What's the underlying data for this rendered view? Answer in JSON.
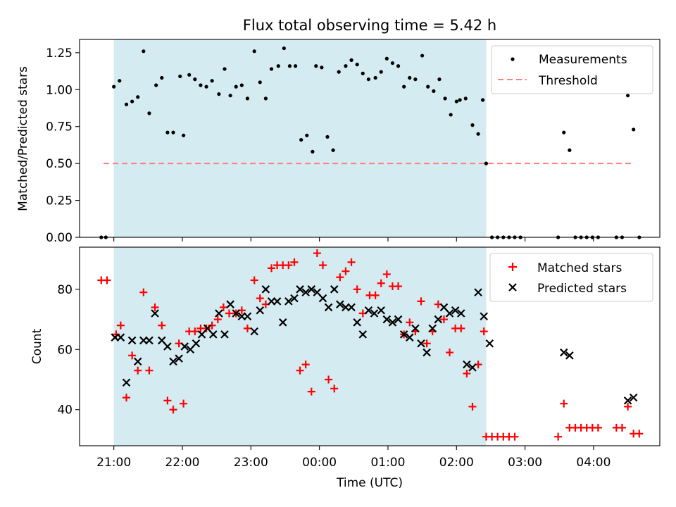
{
  "colors": {
    "span": "#d3ebf1",
    "threshold": "#ff7f7f",
    "matched": "#ff0000",
    "predicted": "#000000",
    "measurement": "#000000"
  },
  "chart_data": [
    {
      "type": "scatter",
      "title": "Flux total observing time = 5.42 h",
      "xlabel": "",
      "ylabel": "Matched/Predicted stars",
      "xlim": [
        "20:30",
        "04:58"
      ],
      "ylim": [
        0,
        1.34
      ],
      "yticks": [
        "0.00",
        "0.25",
        "0.50",
        "0.75",
        "1.00",
        "1.25"
      ],
      "observing_span": [
        "21:00",
        "02:26"
      ],
      "threshold": {
        "value": 0.5,
        "x_start": "20:51",
        "x_end": "04:36"
      },
      "legend": {
        "position": "top-right",
        "items": [
          "Measurements",
          "Threshold"
        ]
      },
      "series": [
        {
          "name": "Measurements",
          "points": [
            [
              "20:49",
              0.0
            ],
            [
              "20:53",
              0.0
            ],
            [
              "21:00",
              1.02
            ],
            [
              "21:05",
              1.06
            ],
            [
              "21:11",
              0.9
            ],
            [
              "21:16",
              0.92
            ],
            [
              "21:21",
              0.95
            ],
            [
              "21:26",
              1.26
            ],
            [
              "21:31",
              0.84
            ],
            [
              "21:37",
              1.03
            ],
            [
              "21:42",
              1.08
            ],
            [
              "21:47",
              0.71
            ],
            [
              "21:52",
              0.71
            ],
            [
              "21:58",
              1.09
            ],
            [
              "22:01",
              0.69
            ],
            [
              "22:06",
              1.1
            ],
            [
              "22:11",
              1.07
            ],
            [
              "22:16",
              1.03
            ],
            [
              "22:21",
              1.02
            ],
            [
              "22:26",
              1.06
            ],
            [
              "22:32",
              0.97
            ],
            [
              "22:37",
              1.14
            ],
            [
              "22:42",
              0.96
            ],
            [
              "22:47",
              1.02
            ],
            [
              "22:52",
              1.03
            ],
            [
              "22:57",
              0.94
            ],
            [
              "23:03",
              1.26
            ],
            [
              "23:08",
              1.05
            ],
            [
              "23:13",
              0.94
            ],
            [
              "23:18",
              1.14
            ],
            [
              "23:24",
              1.16
            ],
            [
              "23:29",
              1.28
            ],
            [
              "23:34",
              1.16
            ],
            [
              "23:39",
              1.16
            ],
            [
              "23:44",
              0.66
            ],
            [
              "23:49",
              0.69
            ],
            [
              "23:54",
              0.58
            ],
            [
              "23:57",
              1.16
            ],
            [
              "00:02",
              1.15
            ],
            [
              "00:07",
              0.68
            ],
            [
              "00:12",
              0.59
            ],
            [
              "00:17",
              1.12
            ],
            [
              "00:23",
              1.16
            ],
            [
              "00:28",
              1.2
            ],
            [
              "00:33",
              1.17
            ],
            [
              "00:38",
              1.11
            ],
            [
              "00:43",
              1.07
            ],
            [
              "00:49",
              1.08
            ],
            [
              "00:54",
              1.12
            ],
            [
              "00:59",
              1.21
            ],
            [
              "01:04",
              1.18
            ],
            [
              "01:09",
              1.16
            ],
            [
              "01:14",
              1.02
            ],
            [
              "01:19",
              1.08
            ],
            [
              "01:24",
              1.07
            ],
            [
              "01:30",
              1.23
            ],
            [
              "01:35",
              1.02
            ],
            [
              "01:40",
              0.99
            ],
            [
              "01:45",
              1.07
            ],
            [
              "01:50",
              0.94
            ],
            [
              "01:55",
              0.83
            ],
            [
              "02:00",
              0.92
            ],
            [
              "02:03",
              0.93
            ],
            [
              "02:08",
              0.94
            ],
            [
              "02:14",
              0.76
            ],
            [
              "02:19",
              0.7
            ],
            [
              "02:23",
              0.93
            ],
            [
              "02:26",
              0.5
            ],
            [
              "02:31",
              0.0
            ],
            [
              "02:36",
              0.0
            ],
            [
              "02:41",
              0.0
            ],
            [
              "02:46",
              0.0
            ],
            [
              "02:51",
              0.0
            ],
            [
              "02:56",
              0.0
            ],
            [
              "03:29",
              0.0
            ],
            [
              "03:34",
              0.71
            ],
            [
              "03:39",
              0.59
            ],
            [
              "03:44",
              0.0
            ],
            [
              "03:49",
              0.0
            ],
            [
              "03:54",
              0.0
            ],
            [
              "03:59",
              0.0
            ],
            [
              "04:04",
              0.0
            ],
            [
              "04:20",
              0.0
            ],
            [
              "04:25",
              0.0
            ],
            [
              "04:30",
              0.96
            ],
            [
              "04:35",
              0.73
            ],
            [
              "04:40",
              0.0
            ]
          ]
        }
      ]
    },
    {
      "type": "scatter",
      "title": "",
      "xlabel": "Time (UTC)",
      "ylabel": "Count",
      "xlim": [
        "20:30",
        "04:58"
      ],
      "ylim": [
        28,
        94
      ],
      "yticks": [
        "40",
        "60",
        "80"
      ],
      "xticks": [
        "21:00",
        "22:00",
        "23:00",
        "00:00",
        "01:00",
        "02:00",
        "03:00",
        "04:00"
      ],
      "observing_span": [
        "21:00",
        "02:26"
      ],
      "legend": {
        "position": "top-right",
        "items": [
          "Matched stars",
          "Predicted stars"
        ]
      },
      "series": [
        {
          "name": "Matched stars",
          "points": [
            [
              "20:49",
              83
            ],
            [
              "20:54",
              83
            ],
            [
              "21:02",
              65
            ],
            [
              "21:06",
              68
            ],
            [
              "21:11",
              44
            ],
            [
              "21:16",
              58
            ],
            [
              "21:21",
              53
            ],
            [
              "21:26",
              79
            ],
            [
              "21:31",
              53
            ],
            [
              "21:36",
              74
            ],
            [
              "21:42",
              68
            ],
            [
              "21:47",
              43
            ],
            [
              "21:52",
              40
            ],
            [
              "21:57",
              62
            ],
            [
              "22:01",
              42
            ],
            [
              "22:06",
              66
            ],
            [
              "22:11",
              66
            ],
            [
              "22:16",
              67
            ],
            [
              "22:21",
              67
            ],
            [
              "22:26",
              68
            ],
            [
              "22:31",
              70
            ],
            [
              "22:36",
              74
            ],
            [
              "22:41",
              72
            ],
            [
              "22:47",
              72
            ],
            [
              "22:52",
              73
            ],
            [
              "22:57",
              67
            ],
            [
              "23:03",
              83
            ],
            [
              "23:08",
              77
            ],
            [
              "23:13",
              75
            ],
            [
              "23:18",
              87
            ],
            [
              "23:23",
              88
            ],
            [
              "23:28",
              88
            ],
            [
              "23:33",
              88
            ],
            [
              "23:38",
              89
            ],
            [
              "23:43",
              53
            ],
            [
              "23:48",
              55
            ],
            [
              "23:53",
              46
            ],
            [
              "23:58",
              92
            ],
            [
              "00:03",
              88
            ],
            [
              "00:08",
              50
            ],
            [
              "00:13",
              47
            ],
            [
              "00:18",
              84
            ],
            [
              "00:23",
              86
            ],
            [
              "00:28",
              89
            ],
            [
              "00:33",
              80
            ],
            [
              "00:38",
              72
            ],
            [
              "00:44",
              78
            ],
            [
              "00:49",
              78
            ],
            [
              "00:54",
              82
            ],
            [
              "00:59",
              85
            ],
            [
              "01:04",
              81
            ],
            [
              "01:09",
              81
            ],
            [
              "01:14",
              65
            ],
            [
              "01:19",
              69
            ],
            [
              "01:24",
              66
            ],
            [
              "01:29",
              76
            ],
            [
              "01:34",
              62
            ],
            [
              "01:39",
              66
            ],
            [
              "01:44",
              75
            ],
            [
              "01:49",
              70
            ],
            [
              "01:54",
              59
            ],
            [
              "01:59",
              67
            ],
            [
              "02:04",
              67
            ],
            [
              "02:09",
              52
            ],
            [
              "02:14",
              41
            ],
            [
              "02:19",
              55
            ],
            [
              "02:24",
              66
            ],
            [
              "02:26",
              31
            ],
            [
              "02:31",
              31
            ],
            [
              "02:36",
              31
            ],
            [
              "02:41",
              31
            ],
            [
              "02:46",
              31
            ],
            [
              "02:51",
              31
            ],
            [
              "03:29",
              31
            ],
            [
              "03:34",
              42
            ],
            [
              "03:39",
              34
            ],
            [
              "03:44",
              34
            ],
            [
              "03:49",
              34
            ],
            [
              "03:54",
              34
            ],
            [
              "03:59",
              34
            ],
            [
              "04:04",
              34
            ],
            [
              "04:20",
              34
            ],
            [
              "04:25",
              34
            ],
            [
              "04:30",
              41
            ],
            [
              "04:35",
              32
            ],
            [
              "04:40",
              32
            ]
          ]
        },
        {
          "name": "Predicted stars",
          "points": [
            [
              "21:01",
              64
            ],
            [
              "21:06",
              64
            ],
            [
              "21:11",
              49
            ],
            [
              "21:16",
              63
            ],
            [
              "21:21",
              56
            ],
            [
              "21:26",
              63
            ],
            [
              "21:31",
              63
            ],
            [
              "21:36",
              72
            ],
            [
              "21:42",
              63
            ],
            [
              "21:47",
              61
            ],
            [
              "21:52",
              56
            ],
            [
              "21:57",
              57
            ],
            [
              "22:02",
              61
            ],
            [
              "22:07",
              60
            ],
            [
              "22:12",
              62
            ],
            [
              "22:17",
              65
            ],
            [
              "22:22",
              67
            ],
            [
              "22:27",
              65
            ],
            [
              "22:32",
              72
            ],
            [
              "22:37",
              65
            ],
            [
              "22:42",
              75
            ],
            [
              "22:47",
              72
            ],
            [
              "22:52",
              71
            ],
            [
              "22:57",
              71
            ],
            [
              "23:03",
              66
            ],
            [
              "23:08",
              73
            ],
            [
              "23:13",
              80
            ],
            [
              "23:18",
              76
            ],
            [
              "23:23",
              76
            ],
            [
              "23:28",
              69
            ],
            [
              "23:33",
              76
            ],
            [
              "23:38",
              77
            ],
            [
              "23:43",
              80
            ],
            [
              "23:48",
              79
            ],
            [
              "23:53",
              80
            ],
            [
              "23:58",
              79
            ],
            [
              "00:03",
              77
            ],
            [
              "00:08",
              74
            ],
            [
              "00:13",
              80
            ],
            [
              "00:18",
              75
            ],
            [
              "00:23",
              74
            ],
            [
              "00:28",
              74
            ],
            [
              "00:33",
              69
            ],
            [
              "00:38",
              65
            ],
            [
              "00:43",
              73
            ],
            [
              "00:48",
              72
            ],
            [
              "00:54",
              73
            ],
            [
              "00:59",
              70
            ],
            [
              "01:04",
              69
            ],
            [
              "01:09",
              70
            ],
            [
              "01:14",
              65
            ],
            [
              "01:19",
              64
            ],
            [
              "01:24",
              67
            ],
            [
              "01:29",
              62
            ],
            [
              "01:34",
              59
            ],
            [
              "01:39",
              67
            ],
            [
              "01:44",
              70
            ],
            [
              "01:49",
              74
            ],
            [
              "01:54",
              72
            ],
            [
              "01:59",
              73
            ],
            [
              "02:04",
              72
            ],
            [
              "02:09",
              55
            ],
            [
              "02:14",
              54
            ],
            [
              "02:19",
              79
            ],
            [
              "02:24",
              71
            ],
            [
              "02:29",
              62
            ],
            [
              "03:34",
              59
            ],
            [
              "03:39",
              58
            ],
            [
              "04:30",
              43
            ],
            [
              "04:35",
              44
            ]
          ]
        }
      ]
    }
  ]
}
